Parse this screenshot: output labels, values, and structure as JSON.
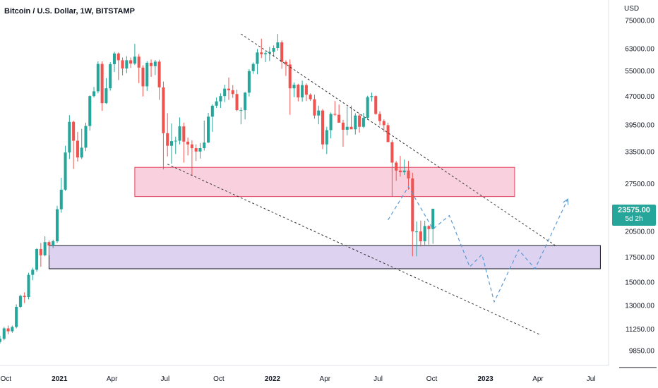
{
  "header": {
    "title": "Bitcoin / U.S. Dollar, 1W, BITSTAMP",
    "currency": "USD"
  },
  "price_badge": {
    "price": "23575.00",
    "countdown": "5d 2h"
  },
  "colors": {
    "up": "#26a69a",
    "down": "#ef5350",
    "resistance_zone_fill": "#f8c8d8",
    "resistance_zone_stroke": "#e0405a",
    "support_zone_fill": "#d9cdee",
    "support_zone_stroke": "#131722",
    "trendline": "#333333",
    "projection": "#5b9bd5"
  },
  "chart_data": {
    "type": "candlestick",
    "symbol": "BTCUSD",
    "interval": "1W",
    "y_scale": "log",
    "ylim": [
      9000,
      85000
    ],
    "xlim": [
      "2020-09-21",
      "2023-07-31"
    ],
    "y_ticks": [
      "75000.00",
      "63000.00",
      "55000.00",
      "47000.00",
      "39500.00",
      "33500.00",
      "27500.00",
      "20500.00",
      "17500.00",
      "15000.00",
      "13000.00",
      "11250.00",
      "9850.00"
    ],
    "x_ticks": [
      {
        "label": "Oct",
        "date": "2020-10-01",
        "bold": false
      },
      {
        "label": "2021",
        "date": "2021-01-01",
        "bold": true
      },
      {
        "label": "Apr",
        "date": "2021-04-01",
        "bold": false
      },
      {
        "label": "Jul",
        "date": "2021-07-01",
        "bold": false
      },
      {
        "label": "Oct",
        "date": "2021-10-01",
        "bold": false
      },
      {
        "label": "2022",
        "date": "2022-01-01",
        "bold": true
      },
      {
        "label": "Apr",
        "date": "2022-04-01",
        "bold": false
      },
      {
        "label": "Jul",
        "date": "2022-07-01",
        "bold": false
      },
      {
        "label": "Oct",
        "date": "2022-10-01",
        "bold": false
      },
      {
        "label": "2023",
        "date": "2023-01-01",
        "bold": true
      },
      {
        "label": "Apr",
        "date": "2023-04-01",
        "bold": false
      },
      {
        "label": "Jul",
        "date": "2023-07-01",
        "bold": false
      }
    ],
    "candle_start": "2020-09-21",
    "candles": [
      [
        10400,
        10800,
        10300,
        10600
      ],
      [
        10600,
        11400,
        10500,
        11300
      ],
      [
        11300,
        11500,
        10900,
        11100
      ],
      [
        11100,
        11500,
        11000,
        11400
      ],
      [
        11400,
        13100,
        11300,
        12900
      ],
      [
        12900,
        13900,
        12800,
        13800
      ],
      [
        13800,
        14100,
        13200,
        13700
      ],
      [
        13700,
        15900,
        13500,
        15700
      ],
      [
        15700,
        16400,
        15200,
        16200
      ],
      [
        16200,
        18500,
        16000,
        18400
      ],
      [
        18400,
        19100,
        16500,
        17700
      ],
      [
        17700,
        19900,
        17600,
        19200
      ],
      [
        19200,
        19400,
        17700,
        18800
      ],
      [
        18800,
        19500,
        18500,
        19300
      ],
      [
        19300,
        24000,
        19100,
        23500
      ],
      [
        23500,
        28500,
        23000,
        26500
      ],
      [
        26500,
        34700,
        26300,
        33300
      ],
      [
        33300,
        41900,
        32000,
        40200
      ],
      [
        40200,
        40500,
        30100,
        35800
      ],
      [
        35800,
        37800,
        31500,
        32300
      ],
      [
        32300,
        38500,
        32000,
        34300
      ],
      [
        34300,
        40000,
        33600,
        39200
      ],
      [
        39200,
        47300,
        38100,
        47100
      ],
      [
        47100,
        49800,
        46700,
        48500
      ],
      [
        48500,
        58300,
        47900,
        57400
      ],
      [
        57400,
        58300,
        43000,
        45100
      ],
      [
        45100,
        52600,
        44900,
        49400
      ],
      [
        49400,
        58000,
        48700,
        57300
      ],
      [
        57300,
        61800,
        54600,
        61200
      ],
      [
        61200,
        61600,
        52000,
        58700
      ],
      [
        58700,
        59700,
        53500,
        55800
      ],
      [
        55800,
        60200,
        54200,
        58700
      ],
      [
        58700,
        59700,
        56000,
        57500
      ],
      [
        57500,
        64900,
        57000,
        60000
      ],
      [
        60000,
        61000,
        51000,
        56100
      ],
      [
        56100,
        56900,
        47000,
        50000
      ],
      [
        50000,
        58400,
        48600,
        57800
      ],
      [
        57800,
        59000,
        53000,
        56600
      ],
      [
        56600,
        58800,
        53600,
        58200
      ],
      [
        58200,
        58900,
        46000,
        49700
      ],
      [
        49700,
        51500,
        30000,
        37500
      ],
      [
        37500,
        42400,
        32500,
        34700
      ],
      [
        34700,
        39800,
        31100,
        35700
      ],
      [
        35700,
        36700,
        33000,
        35800
      ],
      [
        35800,
        41300,
        35000,
        39100
      ],
      [
        39100,
        40000,
        31300,
        35600
      ],
      [
        35600,
        36500,
        32700,
        35000
      ],
      [
        35000,
        35900,
        29000,
        34200
      ],
      [
        34200,
        35000,
        31600,
        33500
      ],
      [
        33500,
        35300,
        32100,
        34200
      ],
      [
        34200,
        40500,
        33700,
        35400
      ],
      [
        35400,
        42500,
        35300,
        41500
      ],
      [
        41500,
        44800,
        37800,
        44400
      ],
      [
        44400,
        46700,
        43800,
        45600
      ],
      [
        45600,
        47900,
        43800,
        47100
      ],
      [
        47100,
        50500,
        45400,
        49300
      ],
      [
        49300,
        52800,
        46000,
        48800
      ],
      [
        48800,
        50400,
        46600,
        47700
      ],
      [
        47700,
        49000,
        42900,
        43200
      ],
      [
        43200,
        43900,
        39600,
        43200
      ],
      [
        43200,
        48300,
        40800,
        48100
      ],
      [
        48100,
        55600,
        47000,
        54900
      ],
      [
        54900,
        57900,
        54000,
        57400
      ],
      [
        57400,
        62900,
        53900,
        61600
      ],
      [
        61600,
        67000,
        59500,
        60900
      ],
      [
        60900,
        62000,
        58000,
        61300
      ],
      [
        61300,
        63700,
        58400,
        61800
      ],
      [
        61800,
        64300,
        60000,
        63300
      ],
      [
        63300,
        69000,
        62300,
        65500
      ],
      [
        65500,
        66300,
        55700,
        58100
      ],
      [
        58100,
        58700,
        53300,
        57200
      ],
      [
        57200,
        59000,
        42000,
        49400
      ],
      [
        49400,
        51200,
        46800,
        50500
      ],
      [
        50500,
        50800,
        45600,
        46700
      ],
      [
        46700,
        51800,
        45500,
        50400
      ],
      [
        50400,
        50900,
        45700,
        47500
      ],
      [
        47500,
        47900,
        45700,
        46200
      ],
      [
        46200,
        47500,
        41000,
        41800
      ],
      [
        41800,
        44400,
        39600,
        43100
      ],
      [
        43100,
        43500,
        34000,
        35000
      ],
      [
        35000,
        39000,
        33000,
        38200
      ],
      [
        38200,
        42600,
        36300,
        42200
      ],
      [
        42200,
        45700,
        41700,
        42000
      ],
      [
        42000,
        44700,
        40000,
        40000
      ],
      [
        40000,
        40700,
        34500,
        38300
      ],
      [
        38300,
        44100,
        37000,
        39000
      ],
      [
        39000,
        44400,
        38500,
        38400
      ],
      [
        38400,
        42400,
        37200,
        41800
      ],
      [
        41800,
        42300,
        37600,
        39000
      ],
      [
        39000,
        42500,
        38700,
        41200
      ],
      [
        41200,
        47200,
        40700,
        46800
      ],
      [
        46800,
        48100,
        45600,
        47100
      ],
      [
        47100,
        47300,
        42000,
        42200
      ],
      [
        42200,
        42900,
        39400,
        40400
      ],
      [
        40400,
        40800,
        37800,
        39400
      ],
      [
        39400,
        40000,
        35600,
        35500
      ],
      [
        35500,
        36000,
        25400,
        31300
      ],
      [
        31300,
        31600,
        28000,
        29800
      ],
      [
        29800,
        32600,
        28700,
        29500
      ],
      [
        29500,
        31900,
        29000,
        29800
      ],
      [
        29800,
        31600,
        26500,
        28400
      ],
      [
        28400,
        29400,
        17600,
        20500
      ],
      [
        20500,
        21800,
        17600,
        20500
      ],
      [
        20500,
        21900,
        18700,
        19300
      ],
      [
        19300,
        21900,
        18800,
        21200
      ],
      [
        21200,
        21300,
        18900,
        20800
      ],
      [
        20800,
        23500,
        19000,
        23575
      ]
    ],
    "zones": [
      {
        "name": "resistance-zone",
        "from_date": "2021-05-10",
        "to_date": "2023-02-20",
        "low": 25400,
        "high": 30400
      },
      {
        "name": "support-zone",
        "from_date": "2020-12-14",
        "to_date": "2023-07-17",
        "low": 16300,
        "high": 18800
      }
    ],
    "trendlines": [
      {
        "name": "upper-trendline",
        "p1": {
          "date": "2021-11-08",
          "price": 69000
        },
        "p2": {
          "date": "2023-05-01",
          "price": 18800
        }
      },
      {
        "name": "lower-trendline",
        "p1": {
          "date": "2021-07-05",
          "price": 31000
        },
        "p2": {
          "date": "2023-04-03",
          "price": 10900
        }
      }
    ],
    "projection": [
      {
        "date": "2022-07-18",
        "price": 22000
      },
      {
        "date": "2022-08-22",
        "price": 27000
      },
      {
        "date": "2022-10-03",
        "price": 20800
      },
      {
        "date": "2022-10-31",
        "price": 22600
      },
      {
        "date": "2022-12-05",
        "price": 16500
      },
      {
        "date": "2022-12-26",
        "price": 17800
      },
      {
        "date": "2023-01-16",
        "price": 13300
      },
      {
        "date": "2023-02-27",
        "price": 18300
      },
      {
        "date": "2023-03-27",
        "price": 16300
      },
      {
        "date": "2023-05-22",
        "price": 25000
      }
    ]
  }
}
